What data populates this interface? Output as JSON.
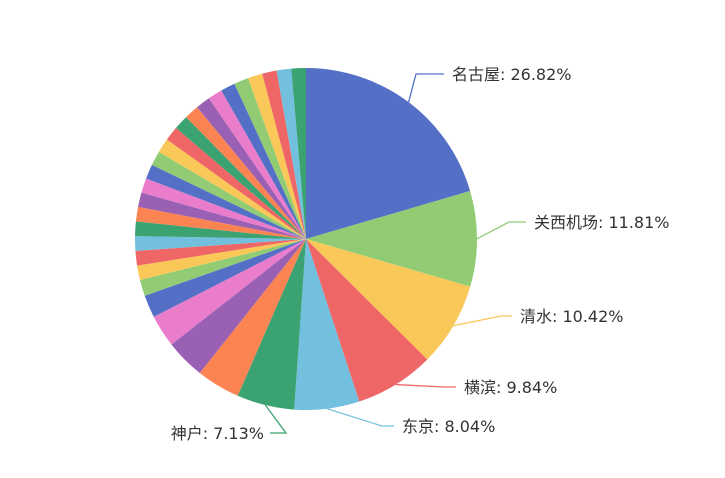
{
  "chart_data": {
    "type": "pie",
    "title": "",
    "slices": [
      {
        "label": "名古屋",
        "value": 26.82,
        "display": "名古屋: 26.82%",
        "color": "#5470c6"
      },
      {
        "label": "关西机场",
        "value": 11.81,
        "display": "关西机场: 11.81%",
        "color": "#91cc75"
      },
      {
        "label": "清水",
        "value": 10.42,
        "display": "清水: 10.42%",
        "color": "#fac858"
      },
      {
        "label": "横滨",
        "value": 9.84,
        "display": "横滨: 9.84%",
        "color": "#ee6666"
      },
      {
        "label": "东京",
        "value": 8.04,
        "display": "东京: 8.04%",
        "color": "#73c0de"
      },
      {
        "label": "神户",
        "value": 7.13,
        "display": "神户: 7.13%",
        "color": "#3ba272"
      },
      {
        "value": 5.4,
        "color": "#fc8452"
      },
      {
        "value": 4.92,
        "color": "#9a60b4"
      },
      {
        "value": 4.0,
        "color": "#ea7ccc"
      },
      {
        "value": 2.8,
        "color": "#5470c6"
      },
      {
        "value": 2.0,
        "color": "#91cc75"
      },
      {
        "value": 1.8,
        "color": "#fac858"
      },
      {
        "value": 1.8,
        "color": "#ee6666"
      },
      {
        "value": 1.8,
        "color": "#73c0de"
      },
      {
        "value": 1.8,
        "color": "#3ba272"
      },
      {
        "value": 1.8,
        "color": "#fc8452"
      },
      {
        "value": 1.8,
        "color": "#9a60b4"
      },
      {
        "value": 1.8,
        "color": "#ea7ccc"
      },
      {
        "value": 1.8,
        "color": "#5470c6"
      },
      {
        "value": 1.8,
        "color": "#91cc75"
      },
      {
        "value": 1.8,
        "color": "#fac858"
      },
      {
        "value": 1.8,
        "color": "#ee6666"
      },
      {
        "value": 1.8,
        "color": "#3ba272"
      },
      {
        "value": 1.8,
        "color": "#fc8452"
      },
      {
        "value": 1.8,
        "color": "#9a60b4"
      },
      {
        "value": 1.8,
        "color": "#ea7ccc"
      },
      {
        "value": 1.8,
        "color": "#5470c6"
      },
      {
        "value": 1.8,
        "color": "#91cc75"
      },
      {
        "value": 1.8,
        "color": "#fac858"
      },
      {
        "value": 1.8,
        "color": "#ee6666"
      },
      {
        "value": 1.8,
        "color": "#73c0de"
      },
      {
        "value": 1.8,
        "color": "#3ba272"
      }
    ],
    "legend": "none",
    "label_position": "outside"
  }
}
